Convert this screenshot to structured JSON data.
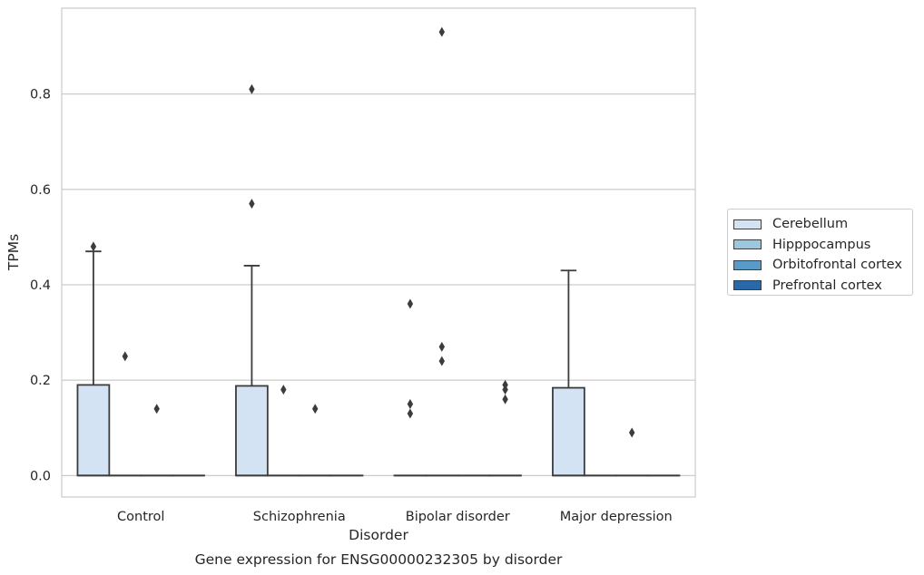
{
  "chart_data": {
    "type": "box",
    "title": "Gene expression for ENSG00000232305 by disorder",
    "xlabel": "Disorder",
    "ylabel": "TPMs",
    "ylim": [
      -0.045,
      0.98
    ],
    "yticks": [
      "0.0",
      "0.2",
      "0.4",
      "0.6",
      "0.8"
    ],
    "grid": true,
    "legend_position": "right",
    "categories": [
      "Control",
      "Schizophrenia",
      "Bipolar disorder",
      "Major depression"
    ],
    "series": [
      {
        "name": "Cerebellum",
        "color": "#d3e3f3",
        "boxes": [
          {
            "q1": 0.0,
            "median": 0.0,
            "q3": 0.19,
            "whisker_low": 0.0,
            "whisker_high": 0.47,
            "outliers": [
              0.48
            ]
          },
          {
            "q1": 0.0,
            "median": 0.0,
            "q3": 0.188,
            "whisker_low": 0.0,
            "whisker_high": 0.44,
            "outliers": [
              0.57,
              0.81
            ]
          },
          {
            "q1": 0.0,
            "median": 0.0,
            "q3": 0.0,
            "whisker_low": 0.0,
            "whisker_high": 0.0,
            "outliers": [
              0.13,
              0.15,
              0.36
            ]
          },
          {
            "q1": 0.0,
            "median": 0.0,
            "q3": 0.184,
            "whisker_low": 0.0,
            "whisker_high": 0.43,
            "outliers": []
          }
        ]
      },
      {
        "name": "Hipppocampus",
        "color": "#9ac8e0",
        "boxes": [
          {
            "q1": 0.0,
            "median": 0.0,
            "q3": 0.0,
            "whisker_low": 0.0,
            "whisker_high": 0.0,
            "outliers": [
              0.25
            ]
          },
          {
            "q1": 0.0,
            "median": 0.0,
            "q3": 0.0,
            "whisker_low": 0.0,
            "whisker_high": 0.0,
            "outliers": [
              0.18
            ]
          },
          {
            "q1": 0.0,
            "median": 0.0,
            "q3": 0.0,
            "whisker_low": 0.0,
            "whisker_high": 0.0,
            "outliers": [
              0.24,
              0.27,
              0.93
            ]
          },
          {
            "q1": 0.0,
            "median": 0.0,
            "q3": 0.0,
            "whisker_low": 0.0,
            "whisker_high": 0.0,
            "outliers": []
          }
        ]
      },
      {
        "name": "Orbitofrontal cortex",
        "color": "#5a9ac7",
        "boxes": [
          {
            "q1": 0.0,
            "median": 0.0,
            "q3": 0.0,
            "whisker_low": 0.0,
            "whisker_high": 0.0,
            "outliers": [
              0.14
            ]
          },
          {
            "q1": 0.0,
            "median": 0.0,
            "q3": 0.0,
            "whisker_low": 0.0,
            "whisker_high": 0.0,
            "outliers": [
              0.14
            ]
          },
          {
            "q1": 0.0,
            "median": 0.0,
            "q3": 0.0,
            "whisker_low": 0.0,
            "whisker_high": 0.0,
            "outliers": []
          },
          {
            "q1": 0.0,
            "median": 0.0,
            "q3": 0.0,
            "whisker_low": 0.0,
            "whisker_high": 0.0,
            "outliers": [
              0.09
            ]
          }
        ]
      },
      {
        "name": "Prefrontal cortex",
        "color": "#2a69a9",
        "boxes": [
          {
            "q1": 0.0,
            "median": 0.0,
            "q3": 0.0,
            "whisker_low": 0.0,
            "whisker_high": 0.0,
            "outliers": []
          },
          {
            "q1": 0.0,
            "median": 0.0,
            "q3": 0.0,
            "whisker_low": 0.0,
            "whisker_high": 0.0,
            "outliers": []
          },
          {
            "q1": 0.0,
            "median": 0.0,
            "q3": 0.0,
            "whisker_low": 0.0,
            "whisker_high": 0.0,
            "outliers": [
              0.16,
              0.18,
              0.19
            ]
          },
          {
            "q1": 0.0,
            "median": 0.0,
            "q3": 0.0,
            "whisker_low": 0.0,
            "whisker_high": 0.0,
            "outliers": []
          }
        ]
      }
    ]
  }
}
